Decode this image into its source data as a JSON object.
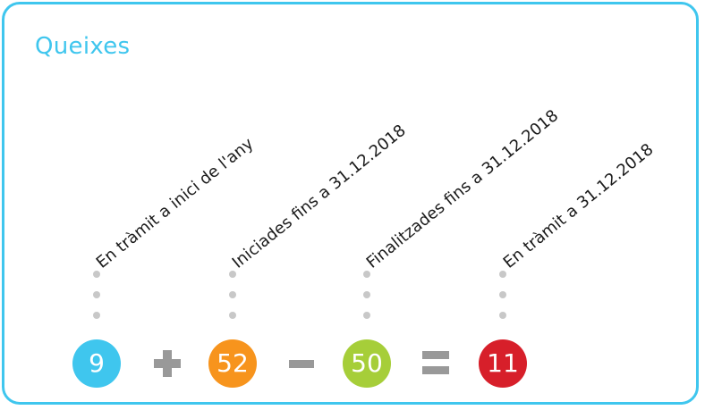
{
  "title": "Queixes",
  "labels": [
    "En tràmit a inici de l'any",
    "Iniciades fins a 31.12.2018",
    "Finalitzades fins a 31.12.2018",
    "En tràmit a 31.12.2018"
  ],
  "values": [
    "9",
    "52",
    "50",
    "11"
  ],
  "colors": {
    "border": "#3fc6ee",
    "title": "#3fc6ee",
    "value_1": "#3fc6ee",
    "value_2": "#f7941d",
    "value_3": "#a6ce39",
    "value_4": "#d71f2a",
    "operators": "#999999",
    "dots": "#c8c8c8"
  },
  "operators": [
    "plus",
    "minus",
    "equals"
  ]
}
